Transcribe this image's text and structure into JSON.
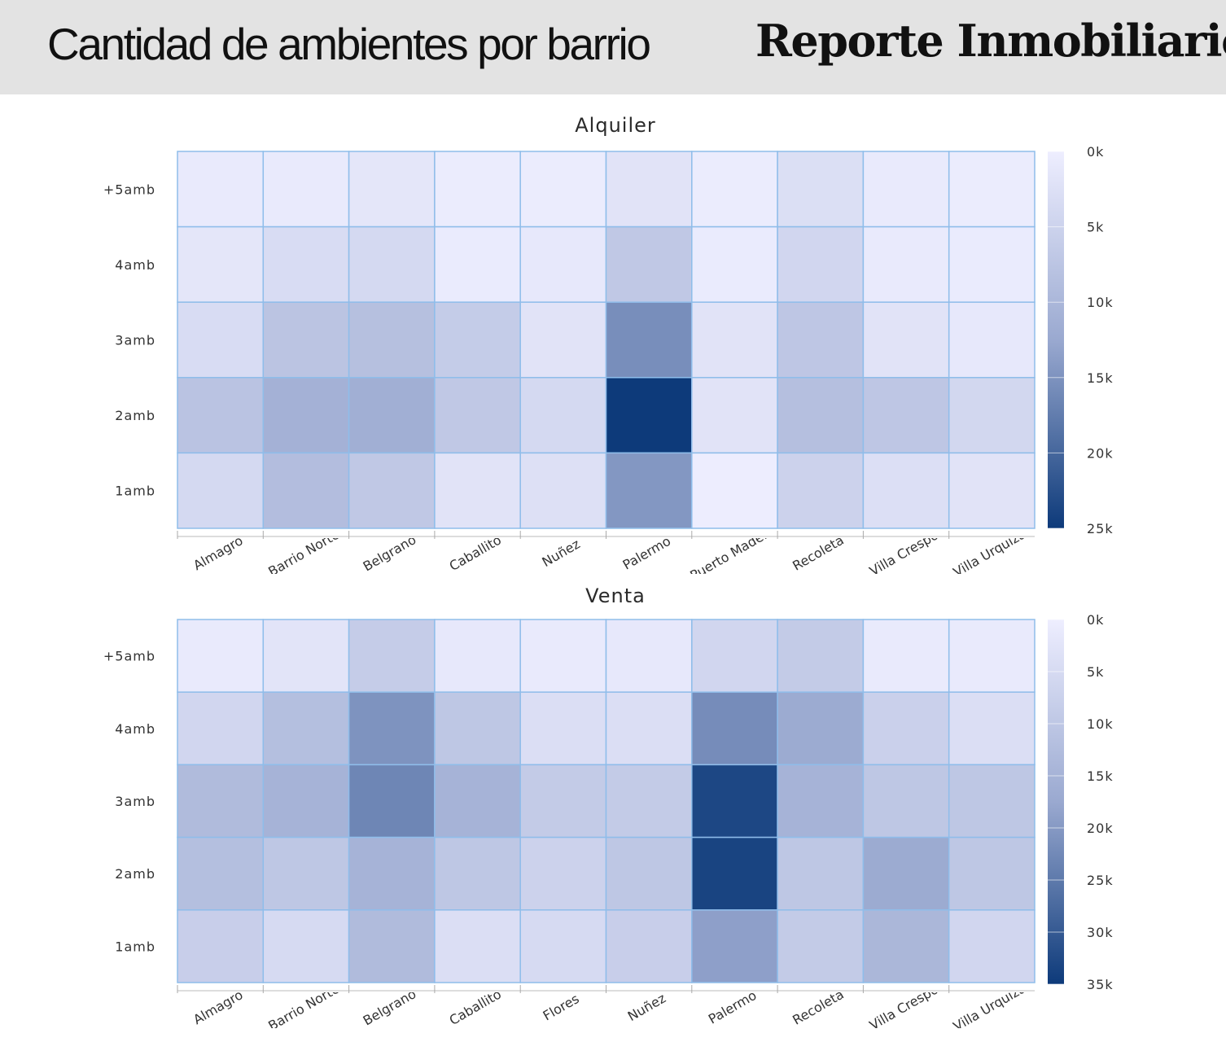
{
  "header": {
    "title": "Cantidad de ambientes por barrio",
    "brand": "Reporte Inmobiliario",
    "brand_mark": "®"
  },
  "colors": {
    "header_bg": "#e3e3e3",
    "cell_border": "#8fbdea",
    "scale_low": "#eeeeff",
    "scale_mid": "#9aa9d0",
    "scale_high": "#0d3a7a"
  },
  "chart_data": [
    {
      "type": "heatmap",
      "title": "Alquiler",
      "categories": [
        "Almagro",
        "Barrio Norte",
        "Belgrano",
        "Caballito",
        "Nuñez",
        "Palermo",
        "Puerto Madero",
        "Recoleta",
        "Villa Crespo",
        "Villa Urquiza"
      ],
      "tick_labels": [
        "Almagro",
        "Barrio Norte",
        "Belgrano",
        "Caballito",
        "Nuñez",
        "Palermo",
        "Puerto Madero",
        "Recoleta",
        "Villa Crespo",
        "Villa Urquiza"
      ],
      "rows": [
        "+5amb",
        "4amb",
        "3amb",
        "2amb",
        "1amb"
      ],
      "values": [
        [
          800,
          700,
          1500,
          400,
          400,
          2000,
          400,
          2800,
          800,
          400
        ],
        [
          1500,
          3200,
          3800,
          600,
          1000,
          6800,
          600,
          4300,
          800,
          600
        ],
        [
          3200,
          7600,
          8400,
          6200,
          2000,
          15500,
          2000,
          7200,
          2000,
          1000
        ],
        [
          7800,
          11000,
          11500,
          6800,
          3800,
          25000,
          2000,
          8500,
          7200,
          4200
        ],
        [
          3800,
          8800,
          6800,
          2000,
          2600,
          14500,
          200,
          5000,
          2700,
          2000
        ]
      ],
      "colorbar": {
        "min": 0,
        "max": 25000,
        "ticks": [
          "0k",
          "5k",
          "10k",
          "15k",
          "20k",
          "25k"
        ]
      }
    },
    {
      "type": "heatmap",
      "title": "Venta",
      "categories": [
        "Almagro",
        "Barrio Norte",
        "Belgrano",
        "Caballito",
        "Flores",
        "Nuñez",
        "Palermo",
        "Recoleta",
        "Villa Crespo",
        "Villa Urquiza"
      ],
      "tick_labels": [
        "Almagro",
        "Barrio Norte",
        "Belgrano",
        "Caballito",
        "Flores",
        "Nuñez",
        "Palermo",
        "Recoleta",
        "Villa Crespo",
        "Villa Urquiza"
      ],
      "rows": [
        "+5amb",
        "4amb",
        "3amb",
        "2amb",
        "1amb"
      ],
      "values": [
        [
          1000,
          2500,
          8500,
          1500,
          1000,
          1500,
          6000,
          9000,
          1000,
          1000
        ],
        [
          6000,
          12000,
          21000,
          10000,
          4000,
          4000,
          22000,
          17000,
          7500,
          4000
        ],
        [
          13000,
          15000,
          23000,
          15000,
          9000,
          9000,
          33000,
          15000,
          10000,
          10000
        ],
        [
          12000,
          10000,
          15000,
          10000,
          7000,
          10000,
          33500,
          10000,
          17000,
          10000
        ],
        [
          8000,
          5000,
          13000,
          4000,
          5000,
          8000,
          19000,
          9000,
          14000,
          6000
        ]
      ],
      "colorbar": {
        "min": 0,
        "max": 35000,
        "ticks": [
          "0k",
          "5k",
          "10k",
          "15k",
          "20k",
          "25k",
          "30k",
          "35k"
        ]
      }
    }
  ]
}
